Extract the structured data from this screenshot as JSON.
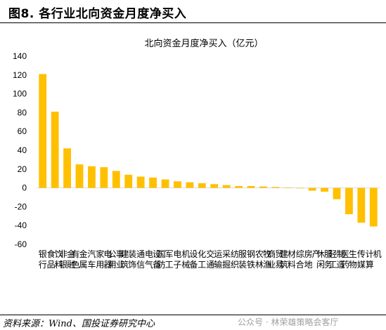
{
  "figure": {
    "title": "图8. 各行业北向资金月度净买入",
    "source": "资料来源：Wind、国投证券研究中心",
    "watermark": "公众号 · 林荣雄策略会客厅"
  },
  "colors": {
    "bar": "#FFC000",
    "text": "#000000",
    "axis": "#d9d9d9"
  },
  "chart_data": {
    "type": "bar",
    "title": "北向资金月度净买入（亿元）",
    "xlabel": "",
    "ylabel": "",
    "ylim": [
      -60,
      140
    ],
    "yticks": [
      -60,
      -40,
      -20,
      0,
      20,
      40,
      60,
      80,
      100,
      120,
      140
    ],
    "ytick_labels": [
      "-60",
      "-40",
      "-20",
      "0",
      "20",
      "40",
      "60",
      "80",
      "100",
      "120",
      "140"
    ],
    "grid": false,
    "legend": "none",
    "categories": [
      "银行",
      "食品饮料",
      "非银金融",
      "有色金属",
      "汽车",
      "家用电器",
      "公用事业",
      "建筑装饰",
      "通信",
      "电气设备",
      "国防军工",
      "电子",
      "机械设备",
      "化工",
      "交通运输",
      "采掘",
      "纺织服装",
      "钢铁",
      "农林牧渔",
      "商业贸易",
      "建筑材料",
      "综合",
      "房地产",
      "休闲服务",
      "轻工制造",
      "医药生物",
      "传媒",
      "计算机"
    ],
    "values": [
      121,
      81,
      42,
      25,
      23,
      22,
      18,
      14,
      12,
      11,
      9,
      7,
      6,
      5,
      4,
      3,
      2,
      2,
      1.5,
      1,
      0.5,
      -0.5,
      -3,
      -4,
      -12,
      -28,
      -37,
      -41
    ]
  }
}
